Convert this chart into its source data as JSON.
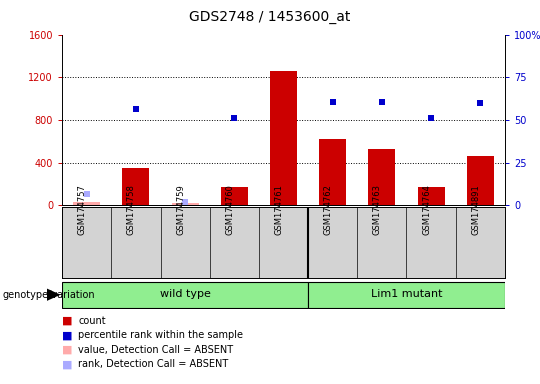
{
  "title": "GDS2748 / 1453600_at",
  "samples": [
    "GSM174757",
    "GSM174758",
    "GSM174759",
    "GSM174760",
    "GSM174761",
    "GSM174762",
    "GSM174763",
    "GSM174764",
    "GSM174891"
  ],
  "counts": [
    30,
    350,
    20,
    170,
    1260,
    620,
    530,
    170,
    460
  ],
  "percentile_ranks": [
    null,
    900,
    null,
    820,
    null,
    970,
    970,
    820,
    960
  ],
  "absent_counts": [
    30,
    null,
    20,
    null,
    null,
    null,
    null,
    null,
    null
  ],
  "absent_ranks": [
    110,
    null,
    30,
    null,
    null,
    null,
    null,
    null,
    null
  ],
  "count_absent": [
    true,
    false,
    true,
    false,
    false,
    false,
    false,
    false,
    false
  ],
  "groups": [
    {
      "label": "wild type",
      "span": 5
    },
    {
      "label": "Lim1 mutant",
      "span": 4
    }
  ],
  "ylim_left": [
    0,
    1600
  ],
  "ylim_right": [
    0,
    100
  ],
  "yticks_left": [
    0,
    400,
    800,
    1200,
    1600
  ],
  "yticks_right": [
    0,
    25,
    50,
    75,
    100
  ],
  "ytick_right_labels": [
    "0",
    "25",
    "50",
    "75",
    "100%"
  ],
  "bar_color": "#cc0000",
  "absent_bar_color": "#ffaaaa",
  "rank_color": "#0000cc",
  "absent_rank_color": "#aaaaff",
  "grid_color": "#000000",
  "bg_color": "#ffffff",
  "label_area_color": "#d3d3d3",
  "group_color": "#90ee90",
  "annotation_color_left": "#cc0000",
  "annotation_color_right": "#0000cc",
  "genotype_label": "genotype/variation",
  "title_fontsize": 10,
  "tick_fontsize": 7,
  "sample_fontsize": 6,
  "group_fontsize": 8,
  "legend_fontsize": 7,
  "genotype_fontsize": 7
}
